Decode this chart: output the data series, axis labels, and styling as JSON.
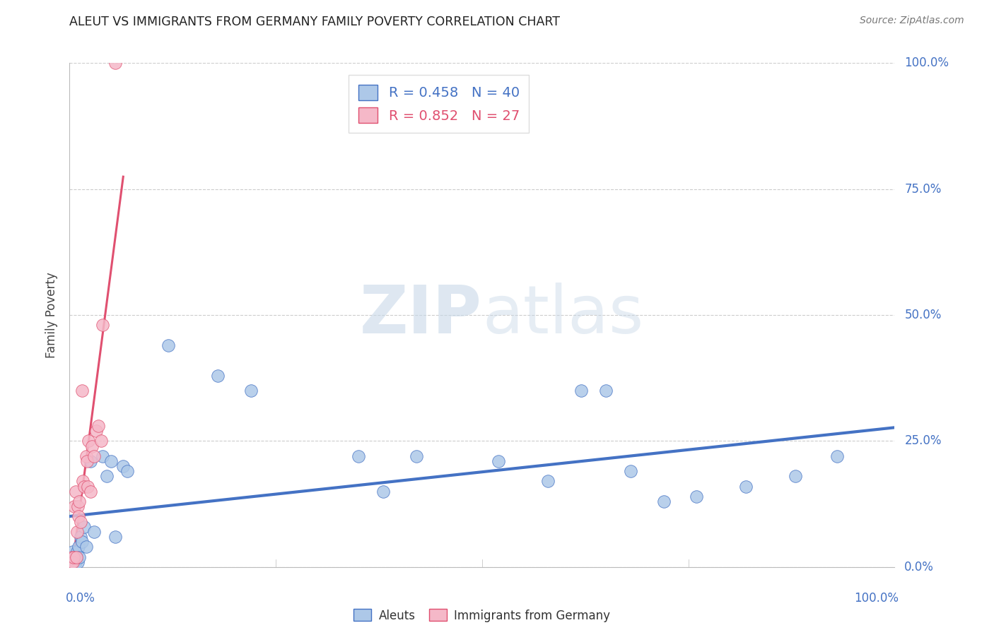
{
  "title": "ALEUT VS IMMIGRANTS FROM GERMANY FAMILY POVERTY CORRELATION CHART",
  "source": "Source: ZipAtlas.com",
  "ylabel": "Family Poverty",
  "ytick_labels": [
    "0.0%",
    "25.0%",
    "50.0%",
    "75.0%",
    "100.0%"
  ],
  "ytick_vals": [
    0.0,
    0.25,
    0.5,
    0.75,
    1.0
  ],
  "xtick_labels": [
    "0.0%",
    "100.0%"
  ],
  "legend1_label": "Aleuts",
  "legend2_label": "Immigrants from Germany",
  "R_aleuts": 0.458,
  "N_aleuts": 40,
  "R_germany": 0.852,
  "N_germany": 27,
  "aleuts_color": "#adc8e8",
  "germany_color": "#f5b8c8",
  "trendline_aleuts_color": "#4472c4",
  "trendline_germany_color": "#e05070",
  "aleuts_x": [
    0.001,
    0.002,
    0.003,
    0.004,
    0.005,
    0.006,
    0.007,
    0.008,
    0.009,
    0.01,
    0.011,
    0.012,
    0.013,
    0.015,
    0.018,
    0.02,
    0.025,
    0.03,
    0.04,
    0.045,
    0.05,
    0.055,
    0.065,
    0.07,
    0.12,
    0.18,
    0.22,
    0.35,
    0.38,
    0.42,
    0.52,
    0.58,
    0.62,
    0.65,
    0.68,
    0.72,
    0.76,
    0.82,
    0.88,
    0.93
  ],
  "aleuts_y": [
    0.02,
    0.01,
    0.02,
    0.03,
    0.01,
    0.02,
    0.01,
    0.02,
    0.03,
    0.01,
    0.04,
    0.02,
    0.06,
    0.05,
    0.08,
    0.04,
    0.21,
    0.07,
    0.22,
    0.18,
    0.21,
    0.06,
    0.2,
    0.19,
    0.44,
    0.38,
    0.35,
    0.22,
    0.15,
    0.22,
    0.21,
    0.17,
    0.35,
    0.35,
    0.19,
    0.13,
    0.14,
    0.16,
    0.18,
    0.22
  ],
  "germany_x": [
    0.002,
    0.003,
    0.004,
    0.005,
    0.006,
    0.007,
    0.008,
    0.009,
    0.01,
    0.011,
    0.012,
    0.013,
    0.015,
    0.016,
    0.018,
    0.02,
    0.021,
    0.022,
    0.023,
    0.025,
    0.027,
    0.03,
    0.032,
    0.035,
    0.038,
    0.04,
    0.055
  ],
  "germany_y": [
    0.01,
    0.02,
    0.01,
    0.02,
    0.12,
    0.15,
    0.02,
    0.07,
    0.12,
    0.1,
    0.13,
    0.09,
    0.35,
    0.17,
    0.16,
    0.22,
    0.21,
    0.16,
    0.25,
    0.15,
    0.24,
    0.22,
    0.27,
    0.28,
    0.25,
    0.48,
    1.0
  ],
  "watermark_zip": "ZIP",
  "watermark_atlas": "atlas",
  "background_color": "#ffffff",
  "grid_color": "#cccccc",
  "axis_color": "#bbbbbb"
}
